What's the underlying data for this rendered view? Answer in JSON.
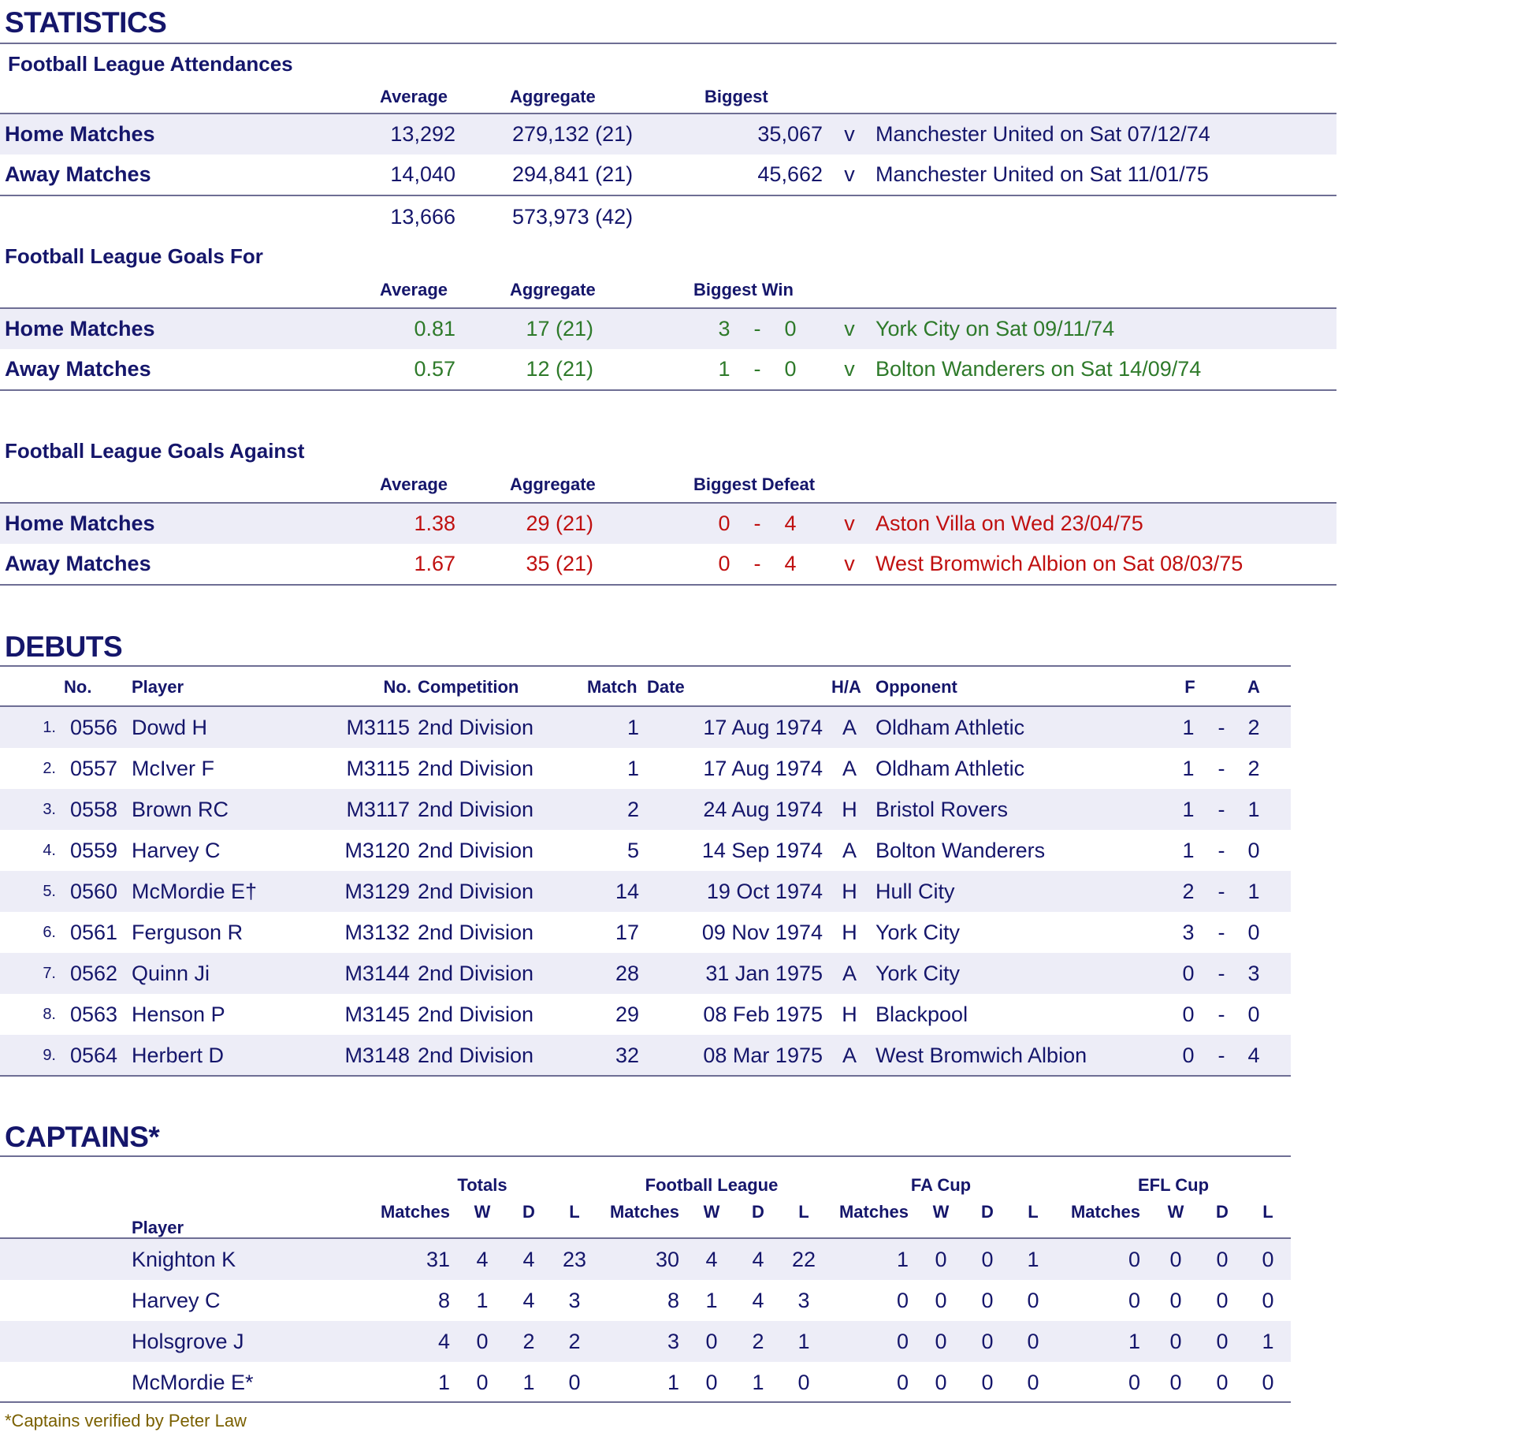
{
  "colors": {
    "text": "#15166b",
    "goals_for": "#2e7a2a",
    "goals_against": "#c01010",
    "shade": "#ededf7",
    "footnote": "#7a6000"
  },
  "statistics": {
    "title": "STATISTICS",
    "attendances": {
      "title": "Football League Attendances",
      "headers": {
        "average": "Average",
        "aggregate": "Aggregate",
        "biggest": "Biggest"
      },
      "rows": [
        {
          "label": "Home Matches",
          "average": "13,292",
          "aggregate": "279,132 (21)",
          "biggest": "35,067",
          "v": "v",
          "detail": "Manchester United on Sat 07/12/74"
        },
        {
          "label": "Away Matches",
          "average": "14,040",
          "aggregate": "294,841 (21)",
          "biggest": "45,662",
          "v": "v",
          "detail": "Manchester United on Sat 11/01/75"
        }
      ],
      "total": {
        "average": "13,666",
        "aggregate": "573,973 (42)"
      }
    },
    "goals_for": {
      "title": "Football League Goals For",
      "headers": {
        "average": "Average",
        "aggregate": "Aggregate",
        "biggest": "Biggest Win"
      },
      "rows": [
        {
          "label": "Home Matches",
          "average": "0.81",
          "aggregate": "17 (21)",
          "f": "3",
          "dash": "-",
          "a": "0",
          "v": "v",
          "detail": "York City on Sat 09/11/74"
        },
        {
          "label": "Away Matches",
          "average": "0.57",
          "aggregate": "12 (21)",
          "f": "1",
          "dash": "-",
          "a": "0",
          "v": "v",
          "detail": "Bolton Wanderers on Sat 14/09/74"
        }
      ]
    },
    "goals_against": {
      "title": "Football League Goals Against",
      "headers": {
        "average": "Average",
        "aggregate": "Aggregate",
        "biggest": "Biggest Defeat"
      },
      "rows": [
        {
          "label": "Home Matches",
          "average": "1.38",
          "aggregate": "29 (21)",
          "f": "0",
          "dash": "-",
          "a": "4",
          "v": "v",
          "detail": "Aston Villa on Wed 23/04/75"
        },
        {
          "label": "Away Matches",
          "average": "1.67",
          "aggregate": "35 (21)",
          "f": "0",
          "dash": "-",
          "a": "4",
          "v": "v",
          "detail": "West Bromwich Albion on Sat 08/03/75"
        }
      ]
    }
  },
  "debuts": {
    "title": "DEBUTS",
    "headers": {
      "no": "No.",
      "player": "Player",
      "match_no": "No.",
      "competition": "Competition",
      "match": "Match",
      "date": "Date",
      "ha": "H/A",
      "opponent": "Opponent",
      "f": "F",
      "a": "A"
    },
    "rows": [
      {
        "idx": "1.",
        "no": "0556",
        "player": "Dowd H",
        "match_no": "M3115",
        "competition": "2nd Division",
        "match": "1",
        "date": "17 Aug 1974",
        "ha": "A",
        "opponent": "Oldham Athletic",
        "f": "1",
        "dash": "-",
        "a": "2"
      },
      {
        "idx": "2.",
        "no": "0557",
        "player": "McIver F",
        "match_no": "M3115",
        "competition": "2nd Division",
        "match": "1",
        "date": "17 Aug 1974",
        "ha": "A",
        "opponent": "Oldham Athletic",
        "f": "1",
        "dash": "-",
        "a": "2"
      },
      {
        "idx": "3.",
        "no": "0558",
        "player": "Brown RC",
        "match_no": "M3117",
        "competition": "2nd Division",
        "match": "2",
        "date": "24 Aug 1974",
        "ha": "H",
        "opponent": "Bristol Rovers",
        "f": "1",
        "dash": "-",
        "a": "1"
      },
      {
        "idx": "4.",
        "no": "0559",
        "player": "Harvey C",
        "match_no": "M3120",
        "competition": "2nd Division",
        "match": "5",
        "date": "14 Sep 1974",
        "ha": "A",
        "opponent": "Bolton Wanderers",
        "f": "1",
        "dash": "-",
        "a": "0"
      },
      {
        "idx": "5.",
        "no": "0560",
        "player": "McMordie E†",
        "match_no": "M3129",
        "competition": "2nd Division",
        "match": "14",
        "date": "19 Oct 1974",
        "ha": "H",
        "opponent": "Hull City",
        "f": "2",
        "dash": "-",
        "a": "1"
      },
      {
        "idx": "6.",
        "no": "0561",
        "player": "Ferguson R",
        "match_no": "M3132",
        "competition": "2nd Division",
        "match": "17",
        "date": "09 Nov 1974",
        "ha": "H",
        "opponent": "York City",
        "f": "3",
        "dash": "-",
        "a": "0"
      },
      {
        "idx": "7.",
        "no": "0562",
        "player": "Quinn Ji",
        "match_no": "M3144",
        "competition": "2nd Division",
        "match": "28",
        "date": "31 Jan 1975",
        "ha": "A",
        "opponent": "York City",
        "f": "0",
        "dash": "-",
        "a": "3"
      },
      {
        "idx": "8.",
        "no": "0563",
        "player": "Henson P",
        "match_no": "M3145",
        "competition": "2nd Division",
        "match": "29",
        "date": "08 Feb 1975",
        "ha": "H",
        "opponent": "Blackpool",
        "f": "0",
        "dash": "-",
        "a": "0"
      },
      {
        "idx": "9.",
        "no": "0564",
        "player": "Herbert D",
        "match_no": "M3148",
        "competition": "2nd Division",
        "match": "32",
        "date": "08 Mar 1975",
        "ha": "A",
        "opponent": "West Bromwich Albion",
        "f": "0",
        "dash": "-",
        "a": "4"
      }
    ]
  },
  "captains": {
    "title": "CAPTAINS*",
    "groups": [
      "Totals",
      "Football League",
      "FA Cup",
      "EFL Cup"
    ],
    "subheaders": [
      "Matches",
      "W",
      "D",
      "L"
    ],
    "player_header": "Player",
    "rows": [
      {
        "player": "Knighton K",
        "values": [
          "31",
          "4",
          "4",
          "23",
          "30",
          "4",
          "4",
          "22",
          "1",
          "0",
          "0",
          "1",
          "0",
          "0",
          "0",
          "0"
        ]
      },
      {
        "player": "Harvey C",
        "values": [
          "8",
          "1",
          "4",
          "3",
          "8",
          "1",
          "4",
          "3",
          "0",
          "0",
          "0",
          "0",
          "0",
          "0",
          "0",
          "0"
        ]
      },
      {
        "player": "Holsgrove J",
        "values": [
          "4",
          "0",
          "2",
          "2",
          "3",
          "0",
          "2",
          "1",
          "0",
          "0",
          "0",
          "0",
          "1",
          "0",
          "0",
          "1"
        ]
      },
      {
        "player": "McMordie E*",
        "values": [
          "1",
          "0",
          "1",
          "0",
          "1",
          "0",
          "1",
          "0",
          "0",
          "0",
          "0",
          "0",
          "0",
          "0",
          "0",
          "0"
        ]
      }
    ],
    "footnote": "*Captains verified by Peter Law"
  }
}
